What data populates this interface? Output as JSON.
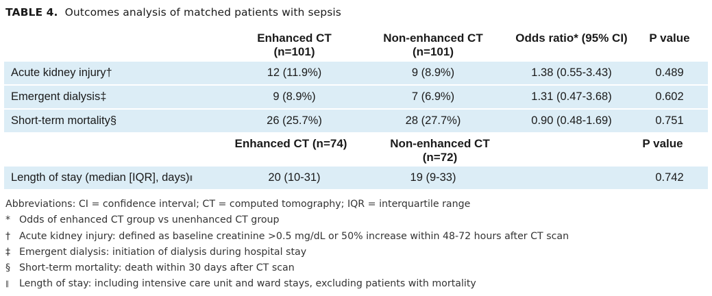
{
  "title": {
    "label": "TABLE 4.",
    "text": "Outcomes analysis of matched patients with sepsis"
  },
  "header1": {
    "col1": "Enhanced CT",
    "col1_sub": "(n=101)",
    "col2": "Non-enhanced CT",
    "col2_sub": "(n=101)",
    "col3": "Odds ratio* (95% CI)",
    "col4": "P value"
  },
  "rows1": [
    {
      "label": "Acute kidney injury†",
      "enhanced": "12 (11.9%)",
      "nonenhanced": "9 (8.9%)",
      "or": "1.38 (0.55-3.43)",
      "p": "0.489"
    },
    {
      "label": "Emergent dialysis‡",
      "enhanced": "9 (8.9%)",
      "nonenhanced": "7 (6.9%)",
      "or": "1.31 (0.47-3.68)",
      "p": "0.602"
    },
    {
      "label": "Short-term mortality§",
      "enhanced": "26 (25.7%)",
      "nonenhanced": "28 (27.7%)",
      "or": "0.90 (0.48-1.69)",
      "p": "0.751"
    }
  ],
  "header2": {
    "col1": "Enhanced CT (n=74)",
    "col2": "Non-enhanced CT",
    "col2_sub": "(n=72)",
    "col4": "P value"
  },
  "rows2": [
    {
      "label": "Length of stay (median [IQR], days)",
      "mark": "‖",
      "enhanced": "20 (10-31)",
      "nonenhanced": "19 (9-33)",
      "or": "",
      "p": "0.742"
    }
  ],
  "notes": {
    "abbreviations": "Abbreviations: CI = confidence interval; CT = computed tomography; IQR = interquartile range",
    "items": [
      {
        "sym": "*",
        "text": "Odds of enhanced CT group vs unenhanced CT group"
      },
      {
        "sym": "†",
        "text": "Acute kidney injury: defined as baseline creatinine >0.5 mg/dL or 50% increase within 48-72 hours after CT scan"
      },
      {
        "sym": "‡",
        "text": "Emergent dialysis: initiation of dialysis during hospital stay"
      },
      {
        "sym": "§",
        "text": "Short-term mortality: death within 30 days after CT scan"
      },
      {
        "sym": "‖",
        "text": "Length of stay: including intensive care unit and ward stays, excluding patients with mortality"
      }
    ]
  }
}
